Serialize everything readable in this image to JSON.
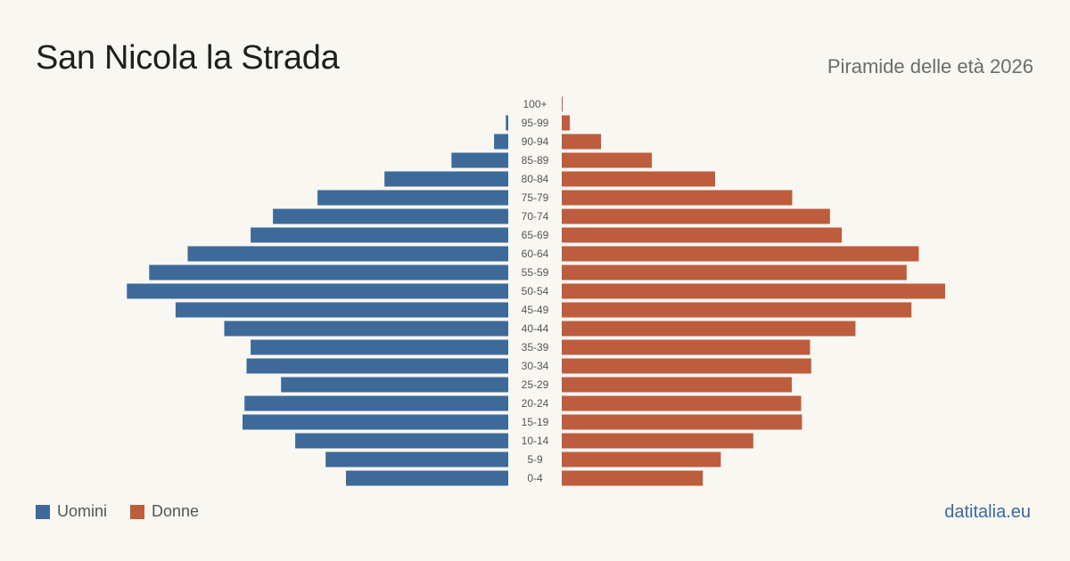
{
  "title": "San Nicola la Strada",
  "subtitle": "Piramide delle età 2026",
  "source": "datitalia.eu",
  "colors": {
    "men": "#3d6a99",
    "women": "#bd5d3e",
    "background": "#f9f7f2",
    "label": "#555555"
  },
  "chart_data": {
    "type": "bar",
    "orientation": "horizontal-population-pyramid",
    "categories": [
      "100+",
      "95-99",
      "90-94",
      "85-89",
      "80-84",
      "75-79",
      "70-74",
      "65-69",
      "60-64",
      "55-59",
      "50-54",
      "45-49",
      "40-44",
      "35-39",
      "30-34",
      "25-29",
      "20-24",
      "15-19",
      "10-14",
      "5-9",
      "0-4"
    ],
    "series": [
      {
        "name": "Uomini",
        "values": [
          0,
          6,
          35,
          140,
          305,
          470,
          580,
          635,
          790,
          885,
          940,
          820,
          700,
          635,
          645,
          560,
          650,
          655,
          525,
          450,
          400
        ]
      },
      {
        "name": "Donne",
        "values": [
          2,
          20,
          97,
          222,
          378,
          568,
          661,
          690,
          880,
          850,
          945,
          862,
          724,
          612,
          615,
          567,
          590,
          592,
          472,
          392,
          348
        ]
      }
    ],
    "legend": [
      "Uomini",
      "Donne"
    ],
    "legend_position": "bottom-left",
    "grid": false
  }
}
